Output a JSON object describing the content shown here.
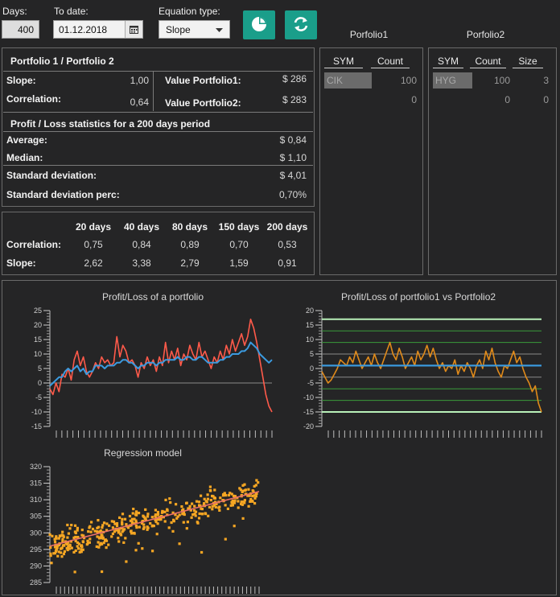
{
  "toolbar": {
    "days_label": "Days:",
    "days_value": "400",
    "todate_label": "To date:",
    "todate_value": "01.12.2018",
    "eq_label": "Equation type:",
    "eq_value": "Slope"
  },
  "summary": {
    "title": "Portfolio 1 / Portfolio 2",
    "slope_label": "Slope:",
    "slope_value": "1,00",
    "corr_label": "Correlation:",
    "corr_value": "0,64",
    "vp1_label": "Value Portfolio1:",
    "vp1_value": "$ 286",
    "vp2_label": "Value Portfolio2:",
    "vp2_value": "$ 283",
    "pl_title": "Profit / Loss statistics for a 200 days period",
    "avg_label": "Average:",
    "avg_value": "$ 0,84",
    "med_label": "Median:",
    "med_value": "$ 1,10",
    "sd_label": "Standard deviation:",
    "sd_value": "$ 4,01",
    "sdp_label": "Standard deviation perc:",
    "sdp_value": "0,70%"
  },
  "period_table": {
    "headers": [
      "20 days",
      "40 days",
      "80 days",
      "150 days",
      "200 days"
    ],
    "rows": [
      {
        "label": "Correlation:",
        "values": [
          "0,75",
          "0,84",
          "0,89",
          "0,70",
          "0,53"
        ]
      },
      {
        "label": "Slope:",
        "values": [
          "2,62",
          "3,38",
          "2,79",
          "1,59",
          "0,91"
        ]
      }
    ]
  },
  "portfolio1": {
    "title": "Porfolio1",
    "headers": [
      "SYM",
      "Count"
    ],
    "rows": [
      [
        "CIK",
        "100"
      ],
      [
        "",
        "0"
      ]
    ]
  },
  "portfolio2": {
    "title": "Porfolio2",
    "headers": [
      "SYM",
      "Count",
      "Size"
    ],
    "rows": [
      [
        "HYG",
        "100",
        "3"
      ],
      [
        "",
        "0",
        "0"
      ]
    ]
  },
  "colors": {
    "accent": "#1a9e8a",
    "p1_line": "#ff5a4a",
    "p2_line": "#3b9be0",
    "diff_line": "#e08a1a",
    "scatter": "#f5a623",
    "reg_line": "#e8706a"
  },
  "chart_data": [
    {
      "type": "line",
      "title": "Profit/Loss of a portfolio",
      "ylim": [
        -15,
        25
      ],
      "yticks": [
        "25",
        "20",
        "15",
        "10",
        "5",
        "0",
        "-5",
        "-10",
        "-15"
      ],
      "series": [
        {
          "values": [
            -2,
            -4,
            0,
            -3,
            3,
            2,
            5,
            1,
            8,
            11,
            6,
            9,
            4,
            2,
            4,
            7,
            5,
            9,
            7,
            8,
            6,
            7,
            16,
            9,
            13,
            11,
            7,
            8,
            6,
            2,
            7,
            5,
            9,
            6,
            8,
            4,
            9,
            6,
            14,
            7,
            11,
            8,
            12,
            6,
            10,
            8,
            13,
            10,
            8,
            14,
            9,
            11,
            8,
            5,
            9,
            7,
            11,
            8,
            13,
            10,
            15,
            11,
            14,
            17,
            13,
            16,
            22,
            19,
            14,
            8,
            2,
            -4,
            -8,
            -10
          ]
        },
        {
          "values": [
            -1,
            0,
            1,
            2,
            2,
            4,
            5,
            4,
            5,
            6,
            4,
            5,
            3,
            4,
            4,
            6,
            6,
            6,
            5,
            6,
            6,
            6,
            7,
            7,
            8,
            8,
            7,
            7,
            6,
            5,
            6,
            6,
            7,
            7,
            7,
            6,
            7,
            7,
            8,
            8,
            8,
            8,
            9,
            8,
            8,
            9,
            9,
            8,
            8,
            9,
            9,
            8,
            7,
            7,
            7,
            7,
            8,
            8,
            9,
            9,
            10,
            10,
            10,
            11,
            11,
            12,
            14,
            13,
            12,
            10,
            9,
            8,
            7,
            8
          ]
        }
      ]
    },
    {
      "type": "line",
      "title": "Profit/Loss of portfolio1 vs Portfolio2",
      "ylim": [
        -20,
        20
      ],
      "yticks": [
        "20",
        "15",
        "10",
        "5",
        "0",
        "-5",
        "-10",
        "-15",
        "-20"
      ],
      "series": [
        {
          "values": [
            -1,
            -3,
            -5,
            -4,
            -2,
            0,
            3,
            2,
            1,
            4,
            2,
            6,
            3,
            0,
            2,
            4,
            1,
            5,
            2,
            0,
            3,
            6,
            9,
            5,
            3,
            7,
            4,
            0,
            2,
            4,
            1,
            6,
            3,
            5,
            8,
            4,
            7,
            3,
            0,
            2,
            -1,
            1,
            0,
            3,
            -2,
            1,
            -1,
            2,
            0,
            -3,
            1,
            3,
            0,
            6,
            3,
            7,
            2,
            -1,
            -3,
            1,
            0,
            3,
            6,
            2,
            4,
            0,
            -3,
            -5,
            -8,
            -6,
            -12,
            -15
          ]
        },
        {
          "values": [
            1,
            1,
            1,
            1,
            1,
            1,
            1,
            1,
            1,
            1,
            1,
            1,
            1,
            1,
            1,
            1,
            1,
            1,
            1,
            1,
            1,
            1,
            1,
            1,
            1,
            1,
            1,
            1,
            1,
            1,
            1,
            1,
            1,
            1,
            1,
            1,
            1,
            1,
            1,
            1,
            1,
            1,
            1,
            1,
            1,
            1,
            1,
            1,
            1,
            1,
            1,
            1,
            1,
            1,
            1,
            1,
            1,
            1,
            1,
            1,
            1,
            1,
            1,
            1,
            1,
            1,
            1,
            1,
            1,
            1,
            1,
            1
          ]
        }
      ],
      "reference_lines": [
        17,
        13,
        9,
        5,
        1,
        -3,
        -7,
        -11,
        -15
      ]
    },
    {
      "type": "scatter",
      "title": "Regression model",
      "ylim": [
        285,
        320
      ],
      "yticks": [
        "320",
        "315",
        "310",
        "305",
        "300",
        "295",
        "290",
        "285"
      ],
      "regression": {
        "y_start": 296,
        "y_end": 312.5
      }
    }
  ]
}
